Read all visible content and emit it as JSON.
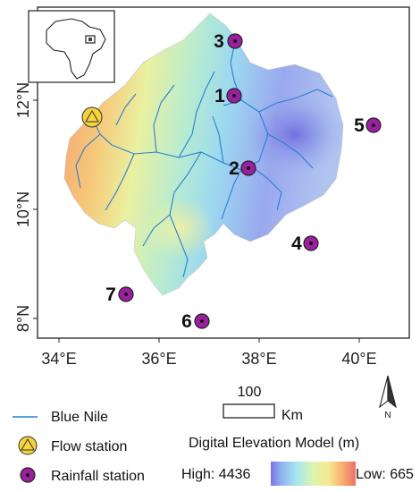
{
  "map": {
    "x_ticks": [
      "34°E",
      "36°E",
      "38°E",
      "40°E"
    ],
    "y_ticks": [
      "12°N",
      "10°N",
      "8°N"
    ],
    "stations": [
      {
        "id": "1",
        "kind": "rainfall"
      },
      {
        "id": "2",
        "kind": "rainfall"
      },
      {
        "id": "3",
        "kind": "rainfall"
      },
      {
        "id": "4",
        "kind": "rainfall"
      },
      {
        "id": "5",
        "kind": "rainfall"
      },
      {
        "id": "6",
        "kind": "rainfall"
      },
      {
        "id": "7",
        "kind": "rainfall"
      }
    ],
    "flow_station": {
      "kind": "flow"
    }
  },
  "scalebar": {
    "distance": "100",
    "unit": "Km"
  },
  "north_arrow": {
    "label": "N"
  },
  "legend": {
    "river": "Blue Nile",
    "flow": "Flow station",
    "rain": "Rainfall station",
    "dem_title": "Digital Elevation Model (m)",
    "dem_high": "High: 4436",
    "dem_low": "Low: 665"
  },
  "colors": {
    "river": "#2a7fd0",
    "station_fill": "#9b1fa0",
    "flow_fill": "#f4d23c",
    "dem_high": "#5b5fe0",
    "dem_low": "#f06060"
  }
}
